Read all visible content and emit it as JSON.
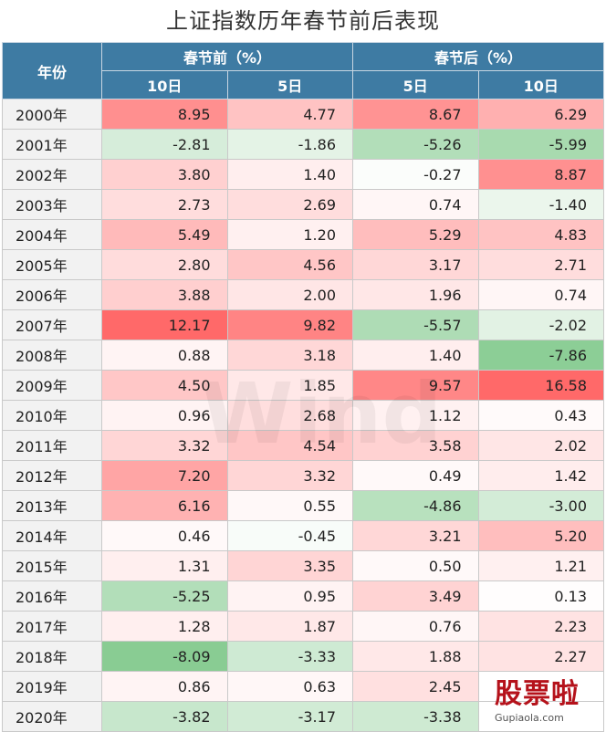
{
  "title": "上证指数历年春节前后表现",
  "headers": {
    "year": "年份",
    "before": "春节前（%）",
    "after": "春节后（%）",
    "sub": [
      "10日",
      "5日",
      "5日",
      "10日"
    ]
  },
  "chart_data": {
    "type": "table",
    "title": "上证指数历年春节前后表现",
    "columns": [
      "春节前 10日",
      "春节前 5日",
      "春节后 5日",
      "春节后 10日"
    ],
    "rows": [
      {
        "year": "2000年",
        "values": [
          "8.95",
          "4.77",
          "8.67",
          "6.29"
        ]
      },
      {
        "year": "2001年",
        "values": [
          "-2.81",
          "-1.86",
          "-5.26",
          "-5.99"
        ]
      },
      {
        "year": "2002年",
        "values": [
          "3.80",
          "1.40",
          "-0.27",
          "8.87"
        ]
      },
      {
        "year": "2003年",
        "values": [
          "2.73",
          "2.69",
          "0.74",
          "-1.40"
        ]
      },
      {
        "year": "2004年",
        "values": [
          "5.49",
          "1.20",
          "5.29",
          "4.83"
        ]
      },
      {
        "year": "2005年",
        "values": [
          "2.80",
          "4.56",
          "3.17",
          "2.71"
        ]
      },
      {
        "year": "2006年",
        "values": [
          "3.88",
          "2.00",
          "1.96",
          "0.74"
        ]
      },
      {
        "year": "2007年",
        "values": [
          "12.17",
          "9.82",
          "-5.57",
          "-2.02"
        ]
      },
      {
        "year": "2008年",
        "values": [
          "0.88",
          "3.18",
          "1.40",
          "-7.86"
        ]
      },
      {
        "year": "2009年",
        "values": [
          "4.50",
          "1.85",
          "9.57",
          "16.58"
        ]
      },
      {
        "year": "2010年",
        "values": [
          "0.96",
          "2.68",
          "1.12",
          "0.43"
        ]
      },
      {
        "year": "2011年",
        "values": [
          "3.32",
          "4.54",
          "3.58",
          "2.02"
        ]
      },
      {
        "year": "2012年",
        "values": [
          "7.20",
          "3.32",
          "0.49",
          "1.42"
        ]
      },
      {
        "year": "2013年",
        "values": [
          "6.16",
          "0.55",
          "-4.86",
          "-3.00"
        ]
      },
      {
        "year": "2014年",
        "values": [
          "0.46",
          "-0.45",
          "3.21",
          "5.20"
        ]
      },
      {
        "year": "2015年",
        "values": [
          "1.31",
          "3.35",
          "0.50",
          "1.21"
        ]
      },
      {
        "year": "2016年",
        "values": [
          "-5.25",
          "0.95",
          "3.49",
          "0.13"
        ]
      },
      {
        "year": "2017年",
        "values": [
          "1.28",
          "1.87",
          "0.76",
          "2.23"
        ]
      },
      {
        "year": "2018年",
        "values": [
          "-8.09",
          "-3.33",
          "1.88",
          "2.27"
        ]
      },
      {
        "year": "2019年",
        "values": [
          "0.86",
          "0.63",
          "2.45",
          ""
        ]
      },
      {
        "year": "2020年",
        "values": [
          "-3.82",
          "-3.17",
          "-3.38",
          ""
        ]
      }
    ],
    "colors": {
      "positive_strong": "#f08080",
      "negative_strong": "#5cb870",
      "header": "#3e7ba3",
      "year_cell": "#f2f2f2"
    }
  },
  "watermark": "Wind",
  "logo": {
    "text": "股票啦",
    "url_text": "Gupiaola.com"
  }
}
